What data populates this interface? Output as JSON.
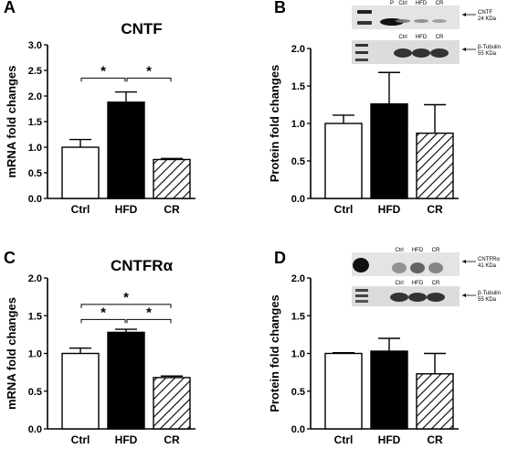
{
  "colors": {
    "ctrl": "#ffffff",
    "hfd": "#000000",
    "cr_hatch": "#000000",
    "axis": "#000000"
  },
  "chart_data": [
    {
      "panel": "A",
      "type": "bar",
      "title": "CNTF",
      "ylabel": "mRNA fold changes",
      "ylim": [
        0,
        3.0
      ],
      "yticks": [
        "0.0",
        "0.5",
        "1.0",
        "1.5",
        "2.0",
        "2.5",
        "3.0"
      ],
      "categories": [
        "Ctrl",
        "HFD",
        "CR"
      ],
      "values": [
        1.0,
        1.88,
        0.76
      ],
      "errors": [
        0.15,
        0.2,
        0.02
      ],
      "significance": [
        {
          "from": 0,
          "to": 1,
          "y": 2.35,
          "label": "*"
        },
        {
          "from": 1,
          "to": 2,
          "y": 2.35,
          "label": "*"
        }
      ]
    },
    {
      "panel": "B",
      "type": "bar",
      "title": "",
      "ylabel": "Protein fold changes",
      "ylim": [
        0,
        2.0
      ],
      "yticks": [
        "0.0",
        "0.5",
        "1.0",
        "1.5",
        "2.0"
      ],
      "categories": [
        "Ctrl",
        "HFD",
        "CR"
      ],
      "values": [
        1.0,
        1.26,
        0.87
      ],
      "errors": [
        0.11,
        0.42,
        0.38
      ],
      "significance": [],
      "blot": {
        "top_lanes": [
          "P",
          "Ctrl",
          "HFD",
          "CR"
        ],
        "top_marker": "CNTF",
        "top_size": "24 KDa",
        "bottom_lanes": [
          "Ctrl",
          "HFD",
          "CR"
        ],
        "bottom_marker": "β-Tubulin",
        "bottom_size": "55 KDa"
      }
    },
    {
      "panel": "C",
      "type": "bar",
      "title": "CNTFRα",
      "ylabel": "mRNA fold changes",
      "ylim": [
        0,
        2.0
      ],
      "yticks": [
        "0.0",
        "0.5",
        "1.0",
        "1.5",
        "2.0"
      ],
      "categories": [
        "Ctrl",
        "HFD",
        "CR"
      ],
      "values": [
        1.0,
        1.28,
        0.68
      ],
      "errors": [
        0.07,
        0.04,
        0.02
      ],
      "significance": [
        {
          "from": 0,
          "to": 2,
          "y": 1.65,
          "label": "*"
        },
        {
          "from": 0,
          "to": 1,
          "y": 1.45,
          "label": "*"
        },
        {
          "from": 1,
          "to": 2,
          "y": 1.45,
          "label": "*"
        }
      ]
    },
    {
      "panel": "D",
      "type": "bar",
      "title": "",
      "ylabel": "Protein fold changes",
      "ylim": [
        0,
        2.0
      ],
      "yticks": [
        "0.0",
        "0.5",
        "1.0",
        "1.5",
        "2.0"
      ],
      "categories": [
        "Ctrl",
        "HFD",
        "CR"
      ],
      "values": [
        1.0,
        1.03,
        0.73
      ],
      "errors": [
        0.01,
        0.17,
        0.27
      ],
      "significance": [],
      "blot": {
        "top_lanes": [
          "Ctrl",
          "HFD",
          "CR"
        ],
        "top_marker": "CNTFRα",
        "top_size": "41 KDa",
        "bottom_lanes": [
          "Ctrl",
          "HFD",
          "CR"
        ],
        "bottom_marker": "β-Tubulin",
        "bottom_size": "55 KDa"
      }
    }
  ]
}
